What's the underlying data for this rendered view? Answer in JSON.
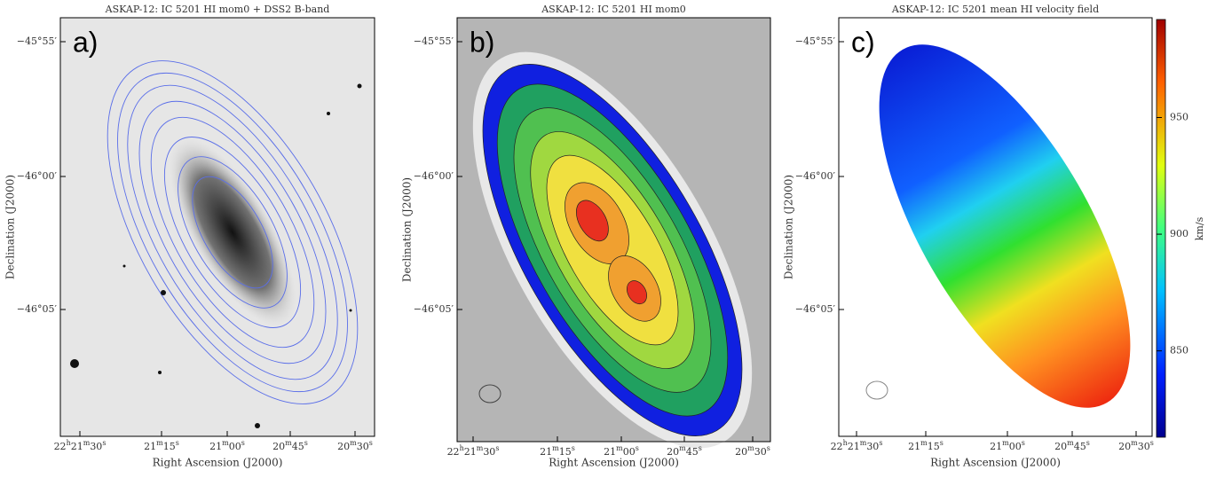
{
  "panels": [
    {
      "title": "ASKAP-12: IC 5201 HI mom0 + DSS2 B-band",
      "label": "a)",
      "xlabel": "Right Ascension (J2000)",
      "ylabel": "Declination (J2000)",
      "yticks": [
        "−45°55′",
        "−46°00′",
        "−46°05′"
      ],
      "xticks": [
        [
          "22",
          "h",
          "21",
          "m",
          "30",
          "s"
        ],
        [
          "21",
          "m",
          "15",
          "s"
        ],
        [
          "21",
          "m",
          "00",
          "s"
        ],
        [
          "20",
          "m",
          "45",
          "s"
        ],
        [
          "20",
          "m",
          "30",
          "s"
        ]
      ]
    },
    {
      "title": "ASKAP-12: IC 5201 HI mom0",
      "label": "b)",
      "xlabel": "Right Ascension (J2000)",
      "ylabel": "Declination (J2000)",
      "yticks": [
        "−45°55′",
        "−46°00′",
        "−46°05′"
      ],
      "xticks": [
        [
          "22",
          "h",
          "21",
          "m",
          "30",
          "s"
        ],
        [
          "21",
          "m",
          "15",
          "s"
        ],
        [
          "21",
          "m",
          "00",
          "s"
        ],
        [
          "20",
          "m",
          "45",
          "s"
        ],
        [
          "20",
          "m",
          "30",
          "s"
        ]
      ]
    },
    {
      "title": "ASKAP-12: IC 5201 mean HI velocity field",
      "label": "c)",
      "xlabel": "Right Ascension (J2000)",
      "ylabel": "Declination (J2000)",
      "yticks": [
        "−45°55′",
        "−46°00′",
        "−46°05′"
      ],
      "xticks": [
        [
          "22",
          "h",
          "21",
          "m",
          "30",
          "s"
        ],
        [
          "21",
          "m",
          "15",
          "s"
        ],
        [
          "21",
          "m",
          "00",
          "s"
        ],
        [
          "20",
          "m",
          "45",
          "s"
        ],
        [
          "20",
          "m",
          "30",
          "s"
        ]
      ]
    }
  ],
  "colorbar": {
    "label": "km/s",
    "lim": [
      813,
      992
    ],
    "ticks": [
      850,
      900,
      950
    ]
  }
}
